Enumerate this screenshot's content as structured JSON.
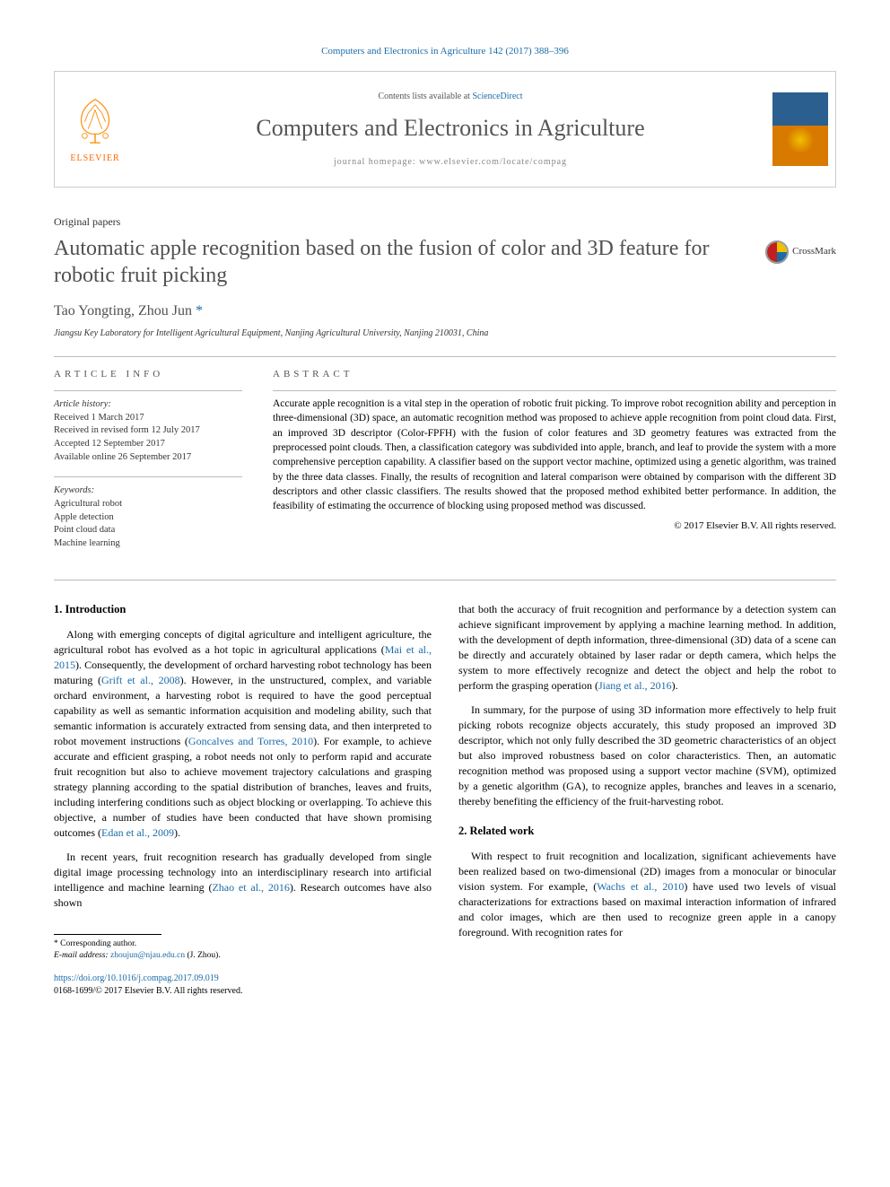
{
  "top_citation": "Computers and Electronics in Agriculture 142 (2017) 388–396",
  "header": {
    "contents_prefix": "Contents lists available at ",
    "contents_link": "ScienceDirect",
    "journal_name": "Computers and Electronics in Agriculture",
    "homepage_prefix": "journal homepage: ",
    "homepage_url": "www.elsevier.com/locate/compag",
    "publisher": "ELSEVIER"
  },
  "article": {
    "type": "Original papers",
    "title": "Automatic apple recognition based on the fusion of color and 3D feature for robotic fruit picking",
    "crossmark": "CrossMark",
    "authors_plain": "Tao Yongting, Zhou Jun",
    "author1": "Tao Yongting, ",
    "author2": "Zhou Jun ",
    "corr_symbol": "*",
    "affiliation": "Jiangsu Key Laboratory for Intelligent Agricultural Equipment, Nanjing Agricultural University, Nanjing 210031, China"
  },
  "info": {
    "heading": "ARTICLE INFO",
    "history_head": "Article history:",
    "history": [
      "Received 1 March 2017",
      "Received in revised form 12 July 2017",
      "Accepted 12 September 2017",
      "Available online 26 September 2017"
    ],
    "keywords_head": "Keywords:",
    "keywords": [
      "Agricultural robot",
      "Apple detection",
      "Point cloud data",
      "Machine learning"
    ]
  },
  "abstract": {
    "heading": "ABSTRACT",
    "text": "Accurate apple recognition is a vital step in the operation of robotic fruit picking. To improve robot recognition ability and perception in three-dimensional (3D) space, an automatic recognition method was proposed to achieve apple recognition from point cloud data. First, an improved 3D descriptor (Color-FPFH) with the fusion of color features and 3D geometry features was extracted from the preprocessed point clouds. Then, a classification category was subdivided into apple, branch, and leaf to provide the system with a more comprehensive perception capability. A classifier based on the support vector machine, optimized using a genetic algorithm, was trained by the three data classes. Finally, the results of recognition and lateral comparison were obtained by comparison with the different 3D descriptors and other classic classifiers. The results showed that the proposed method exhibited better performance. In addition, the feasibility of estimating the occurrence of blocking using proposed method was discussed.",
    "copyright": "© 2017 Elsevier B.V. All rights reserved."
  },
  "body": {
    "section1_head": "1. Introduction",
    "col_left": [
      "Along with emerging concepts of digital agriculture and intelligent agriculture, the agricultural robot has evolved as a hot topic in agricultural applications (Mai et al., 2015). Consequently, the development of orchard harvesting robot technology has been maturing (Grift et al., 2008). However, in the unstructured, complex, and variable orchard environment, a harvesting robot is required to have the good perceptual capability as well as semantic information acquisition and modeling ability, such that semantic information is accurately extracted from sensing data, and then interpreted to robot movement instructions (Goncalves and Torres, 2010). For example, to achieve accurate and efficient grasping, a robot needs not only to perform rapid and accurate fruit recognition but also to achieve movement trajectory calculations and grasping strategy planning according to the spatial distribution of branches, leaves and fruits, including interfering conditions such as object blocking or overlapping. To achieve this objective, a number of studies have been conducted that have shown promising outcomes (Edan et al., 2009).",
      "In recent years, fruit recognition research has gradually developed from single digital image processing technology into an interdisciplinary research into artificial intelligence and machine learning (Zhao et al., 2016). Research outcomes have also shown"
    ],
    "col_right_top": [
      "that both the accuracy of fruit recognition and performance by a detection system can achieve significant improvement by applying a machine learning method. In addition, with the development of depth information, three-dimensional (3D) data of a scene can be directly and accurately obtained by laser radar or depth camera, which helps the system to more effectively recognize and detect the object and help the robot to perform the grasping operation (Jiang et al., 2016).",
      "In summary, for the purpose of using 3D information more effectively to help fruit picking robots recognize objects accurately, this study proposed an improved 3D descriptor, which not only fully described the 3D geometric characteristics of an object but also improved robustness based on color characteristics. Then, an automatic recognition method was proposed using a support vector machine (SVM), optimized by a genetic algorithm (GA), to recognize apples, branches and leaves in a scenario, thereby benefiting the efficiency of the fruit-harvesting robot."
    ],
    "section2_head": "2. Related work",
    "col_right_bottom": [
      "With respect to fruit recognition and localization, significant achievements have been realized based on two-dimensional (2D) images from a monocular or binocular vision system. For example, (Wachs et al., 2010) have used two levels of visual characterizations for extractions based on maximal interaction information of infrared and color images, which are then used to recognize green apple in a canopy foreground. With recognition rates for"
    ]
  },
  "footnotes": {
    "corr": "* Corresponding author.",
    "email_label": "E-mail address: ",
    "email": "zhoujun@njau.edu.cn",
    "email_tail": " (J. Zhou)."
  },
  "footer": {
    "doi": "https://doi.org/10.1016/j.compag.2017.09.019",
    "issn_line": "0168-1699/© 2017 Elsevier B.V. All rights reserved."
  },
  "colors": {
    "link": "#1a6ba8",
    "elsevier_orange": "#ff6600",
    "text_gray": "#505050"
  }
}
